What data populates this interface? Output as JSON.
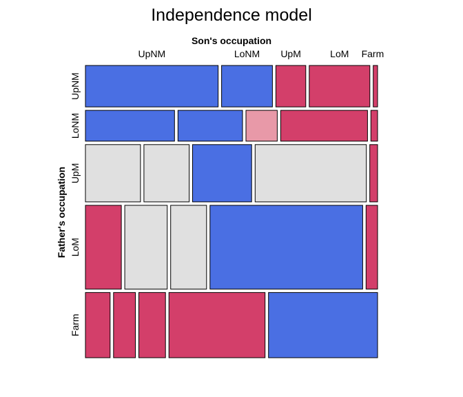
{
  "chart_data": {
    "type": "mosaic",
    "title": "Independence model",
    "column_variable": "Son's occupation",
    "row_variable": "Father's occupation",
    "column_categories": [
      "UpNM",
      "LoNM",
      "UpM",
      "LoM",
      "Farm"
    ],
    "row_categories": [
      "UpNM",
      "LoNM",
      "UpM",
      "LoM",
      "Farm"
    ],
    "shading": {
      "strong-positive": "#4a6fe3",
      "neutral": "#e0e0e0",
      "weak-negative": "#e899a8",
      "strong-negative": "#d33f6a"
    },
    "rows": [
      {
        "name": "UpNM",
        "proportion": 0.141,
        "cells": [
          {
            "son": "UpNM",
            "share": 0.462,
            "shade": "strong-positive"
          },
          {
            "son": "LoNM",
            "share": 0.177,
            "shade": "strong-positive"
          },
          {
            "son": "UpM",
            "share": 0.104,
            "shade": "strong-negative"
          },
          {
            "son": "LoM",
            "share": 0.211,
            "shade": "strong-negative"
          },
          {
            "son": "Farm",
            "share": 0.015,
            "shade": "strong-negative"
          }
        ]
      },
      {
        "name": "LoNM",
        "proportion": 0.105,
        "cells": [
          {
            "son": "UpNM",
            "share": 0.308,
            "shade": "strong-positive"
          },
          {
            "son": "LoNM",
            "share": 0.223,
            "shade": "strong-positive"
          },
          {
            "son": "UpM",
            "share": 0.108,
            "shade": "weak-negative"
          },
          {
            "son": "LoM",
            "share": 0.3,
            "shade": "strong-negative"
          },
          {
            "son": "Farm",
            "share": 0.023,
            "shade": "strong-negative"
          }
        ]
      },
      {
        "name": "UpM",
        "proportion": 0.195,
        "cells": [
          {
            "son": "UpNM",
            "share": 0.191,
            "shade": "neutral"
          },
          {
            "son": "LoNM",
            "share": 0.157,
            "shade": "neutral"
          },
          {
            "son": "UpM",
            "share": 0.205,
            "shade": "strong-positive"
          },
          {
            "son": "LoM",
            "share": 0.386,
            "shade": "neutral"
          },
          {
            "son": "Farm",
            "share": 0.027,
            "shade": "strong-negative"
          }
        ]
      },
      {
        "name": "LoM",
        "proportion": 0.285,
        "cells": [
          {
            "son": "UpNM",
            "share": 0.125,
            "shade": "strong-negative"
          },
          {
            "son": "LoNM",
            "share": 0.148,
            "shade": "neutral"
          },
          {
            "son": "UpM",
            "share": 0.125,
            "shade": "neutral"
          },
          {
            "son": "LoM",
            "share": 0.532,
            "shade": "strong-positive"
          },
          {
            "son": "Farm",
            "share": 0.04,
            "shade": "strong-negative"
          }
        ]
      },
      {
        "name": "Farm",
        "proportion": 0.222,
        "cells": [
          {
            "son": "UpNM",
            "share": 0.086,
            "shade": "strong-negative"
          },
          {
            "son": "LoNM",
            "share": 0.076,
            "shade": "strong-negative"
          },
          {
            "son": "UpM",
            "share": 0.093,
            "shade": "strong-negative"
          },
          {
            "son": "LoM",
            "share": 0.335,
            "shade": "strong-negative"
          },
          {
            "son": "Farm",
            "share": 0.38,
            "shade": "strong-positive"
          }
        ]
      }
    ]
  }
}
